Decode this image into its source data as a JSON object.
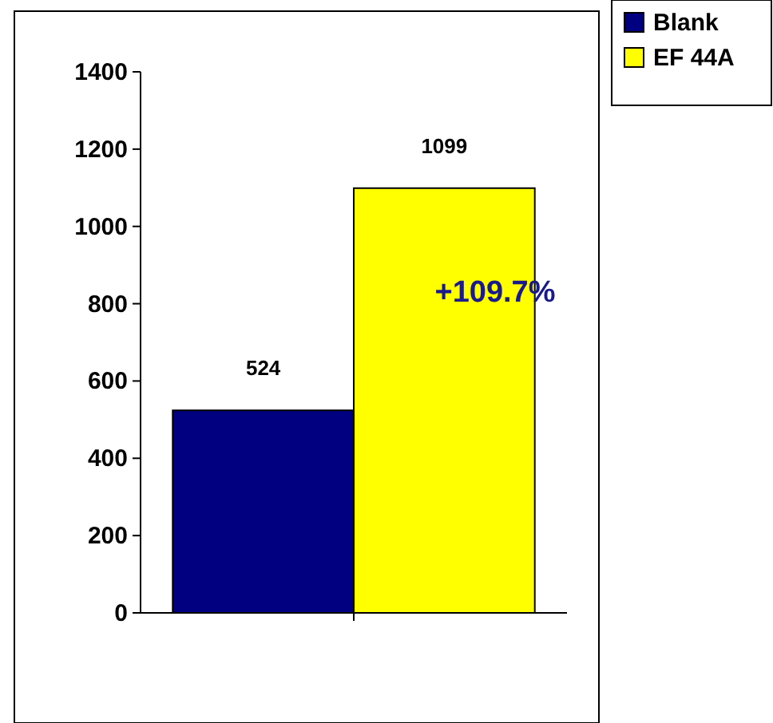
{
  "chart_data": {
    "type": "bar",
    "categories": [
      null
    ],
    "series": [
      {
        "name": "Blank",
        "color": "#000080",
        "values": [
          524
        ]
      },
      {
        "name": "EF 44A",
        "color": "#ffff00",
        "values": [
          1099
        ]
      }
    ],
    "ylim": [
      0,
      1400
    ],
    "yticks": [
      0,
      200,
      400,
      600,
      800,
      1000,
      1200,
      1400
    ],
    "data_labels": true,
    "legend": "top right",
    "grid": false,
    "annotations": [
      "+109.7%"
    ]
  }
}
